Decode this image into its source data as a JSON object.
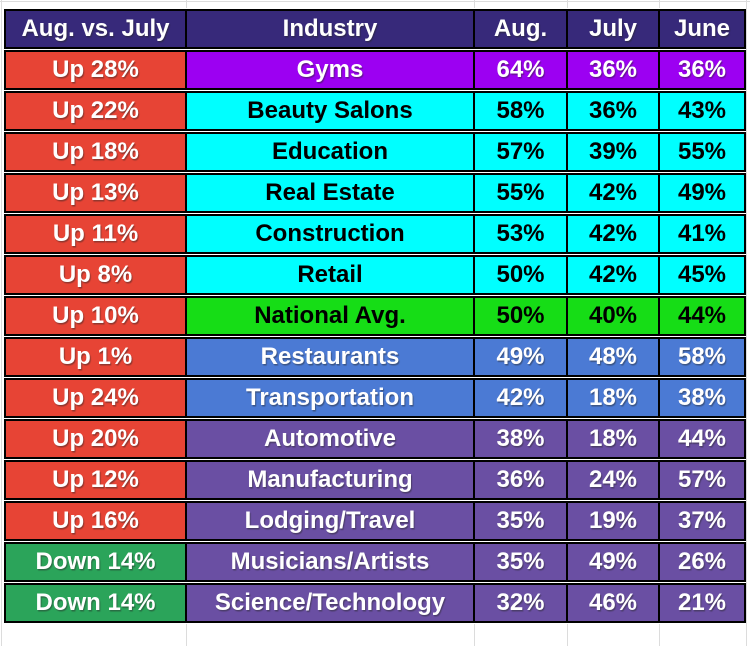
{
  "table": {
    "columns": [
      "Aug. vs. July",
      "Industry",
      "Aug.",
      "July",
      "June"
    ],
    "rows": [
      {
        "change": "Up 28%",
        "change_style": "red",
        "industry": "Gyms",
        "industry_style": "violet",
        "aug": "64%",
        "july": "36%",
        "june": "36%"
      },
      {
        "change": "Up 22%",
        "change_style": "red",
        "industry": "Beauty Salons",
        "industry_style": "cyan",
        "aug": "58%",
        "july": "36%",
        "june": "43%"
      },
      {
        "change": "Up 18%",
        "change_style": "red",
        "industry": "Education",
        "industry_style": "cyan",
        "aug": "57%",
        "july": "39%",
        "june": "55%"
      },
      {
        "change": "Up 13%",
        "change_style": "red",
        "industry": "Real Estate",
        "industry_style": "cyan",
        "aug": "55%",
        "july": "42%",
        "june": "49%"
      },
      {
        "change": "Up 11%",
        "change_style": "red",
        "industry": "Construction",
        "industry_style": "cyan",
        "aug": "53%",
        "july": "42%",
        "june": "41%"
      },
      {
        "change": "Up 8%",
        "change_style": "red",
        "industry": "Retail",
        "industry_style": "cyan",
        "aug": "50%",
        "july": "42%",
        "june": "45%"
      },
      {
        "change": "Up 10%",
        "change_style": "red",
        "industry": "National Avg.",
        "industry_style": "lime",
        "aug": "50%",
        "july": "40%",
        "june": "44%"
      },
      {
        "change": "Up 1%",
        "change_style": "red",
        "industry": "Restaurants",
        "industry_style": "blue",
        "aug": "49%",
        "july": "48%",
        "june": "58%"
      },
      {
        "change": "Up 24%",
        "change_style": "red",
        "industry": "Transportation",
        "industry_style": "blue",
        "aug": "42%",
        "july": "18%",
        "june": "38%"
      },
      {
        "change": "Up 20%",
        "change_style": "red",
        "industry": "Automotive",
        "industry_style": "purple",
        "aug": "38%",
        "july": "18%",
        "june": "44%"
      },
      {
        "change": "Up 12%",
        "change_style": "red",
        "industry": "Manufacturing",
        "industry_style": "purple",
        "aug": "36%",
        "july": "24%",
        "june": "57%"
      },
      {
        "change": "Up 16%",
        "change_style": "red",
        "industry": "Lodging/Travel",
        "industry_style": "purple",
        "aug": "35%",
        "july": "19%",
        "june": "37%"
      },
      {
        "change": "Down 14%",
        "change_style": "green",
        "industry": "Musicians/Artists",
        "industry_style": "purple",
        "aug": "35%",
        "july": "49%",
        "june": "26%"
      },
      {
        "change": "Down 14%",
        "change_style": "green",
        "industry": "Science/Technology",
        "industry_style": "purple",
        "aug": "32%",
        "july": "46%",
        "june": "21%"
      }
    ]
  },
  "colors": {
    "header_bg": "#37297A",
    "grid": "#DCDCDC",
    "border": "#000000"
  },
  "styles": {
    "red": {
      "bg": "#E74435",
      "fg": "#FFFFFF"
    },
    "green": {
      "bg": "#2BA45A",
      "fg": "#FFFFFF"
    },
    "violet": {
      "bg": "#9C00F2",
      "fg": "#FFFFFF"
    },
    "cyan": {
      "bg": "#00FFFF",
      "fg": "#000000"
    },
    "lime": {
      "bg": "#16DD16",
      "fg": "#000000"
    },
    "blue": {
      "bg": "#4B7AD4",
      "fg": "#FFFFFF"
    },
    "purple": {
      "bg": "#6A4FA3",
      "fg": "#FFFFFF"
    }
  }
}
